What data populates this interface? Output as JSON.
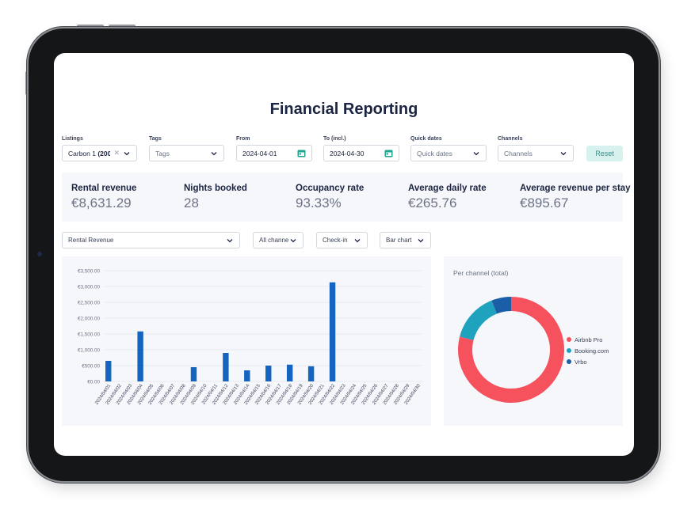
{
  "page": {
    "title": "Financial Reporting"
  },
  "filters": {
    "listings": {
      "label": "Listings",
      "value_prefix": "Carbon 1 ",
      "value_bold": "(2009"
    },
    "tags": {
      "label": "Tags",
      "placeholder": "Tags"
    },
    "from": {
      "label": "From",
      "value": "2024-04-01"
    },
    "to": {
      "label": "To (incl.)",
      "value": "2024-04-30"
    },
    "quick_dates": {
      "label": "Quick dates",
      "placeholder": "Quick dates"
    },
    "channels": {
      "label": "Channels",
      "placeholder": "Channels"
    },
    "reset_label": "Reset"
  },
  "stats": [
    {
      "label": "Rental revenue",
      "value": "€8,631.29"
    },
    {
      "label": "Nights booked",
      "value": "28"
    },
    {
      "label": "Occupancy rate",
      "value": "93.33%"
    },
    {
      "label": "Average daily rate",
      "value": "€265.76"
    },
    {
      "label": "Average revenue per stay",
      "value": "€895.67"
    }
  ],
  "controls": {
    "metric": "Rental Revenue",
    "channel": "All channe",
    "date_basis": "Check-in",
    "chart_type": "Bar chart"
  },
  "colors": {
    "bar": "#1565c0",
    "airbnb": "#f5525e",
    "booking": "#1ea2bd",
    "vrbo": "#1a5ea8"
  },
  "chart_data": [
    {
      "type": "bar",
      "categories": [
        "2024/04/01",
        "2024/04/02",
        "2024/04/03",
        "2024/04/04",
        "2024/04/05",
        "2024/04/06",
        "2024/04/07",
        "2024/04/08",
        "2024/04/09",
        "2024/04/10",
        "2024/04/11",
        "2024/04/12",
        "2024/04/13",
        "2024/04/14",
        "2024/04/15",
        "2024/04/16",
        "2024/04/17",
        "2024/04/18",
        "2024/04/19",
        "2024/04/20",
        "2024/04/21",
        "2024/04/22",
        "2024/04/23",
        "2024/04/24",
        "2024/04/25",
        "2024/04/26",
        "2024/04/27",
        "2024/04/28",
        "2024/04/29",
        "2024/04/30"
      ],
      "values": [
        650,
        0,
        0,
        1580,
        0,
        0,
        0,
        0,
        450,
        0,
        0,
        900,
        0,
        350,
        0,
        500,
        0,
        530,
        0,
        480,
        0,
        3130,
        0,
        0,
        0,
        0,
        0,
        0,
        0,
        0
      ],
      "yticks": [
        "€0.00",
        "€500.00",
        "€1,000.00",
        "€1,500.00",
        "€2,000.00",
        "€2,500.00",
        "€3,000.00",
        "€3,500.00"
      ],
      "ylim": [
        0,
        3500
      ],
      "grid": true
    },
    {
      "type": "pie",
      "title": "Per channel (total)",
      "labels": [
        "Airbnb Pro",
        "Booking.com",
        "Vrbo"
      ],
      "values": [
        79,
        15,
        6
      ],
      "donut": true,
      "legend": "right"
    }
  ]
}
